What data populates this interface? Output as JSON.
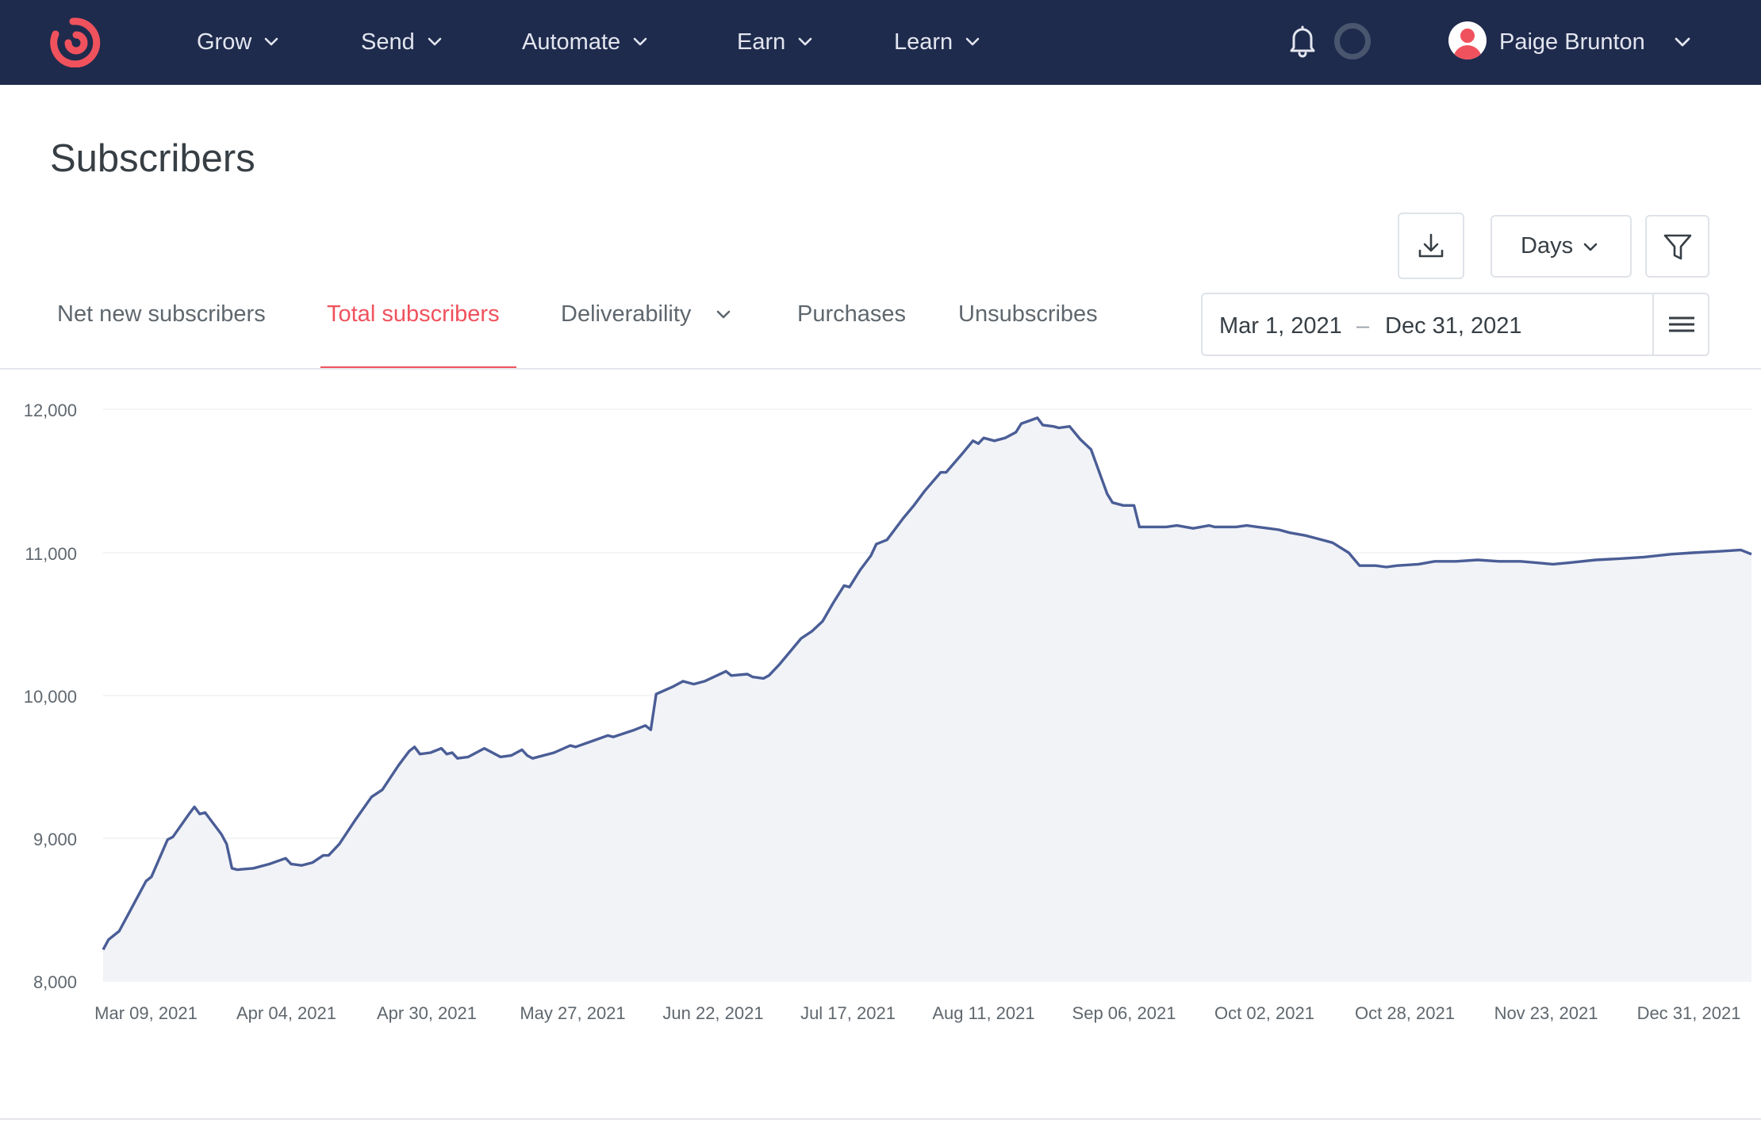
{
  "nav": {
    "items": [
      {
        "label": "Grow"
      },
      {
        "label": "Send"
      },
      {
        "label": "Automate"
      },
      {
        "label": "Earn"
      },
      {
        "label": "Learn"
      }
    ],
    "user_name": "Paige Brunton",
    "icons": {
      "logo": "convertkit-logo",
      "notifications": "bell-icon",
      "status": "loading-ring-icon",
      "avatar": "user-avatar"
    }
  },
  "page": {
    "title": "Subscribers"
  },
  "toolbar": {
    "interval": "Days",
    "download_icon": "download-icon",
    "filter_icon": "filter-icon"
  },
  "tabs": [
    {
      "label": "Net new subscribers",
      "active": false
    },
    {
      "label": "Total subscribers",
      "active": true
    },
    {
      "label": "Deliverability",
      "active": false
    },
    {
      "label": "Purchases",
      "active": false
    },
    {
      "label": "Unsubscribes",
      "active": false
    }
  ],
  "date_range": {
    "start": "Mar 1, 2021",
    "separator": "–",
    "end": "Dec 31, 2021"
  },
  "colors": {
    "nav_bg": "#1f2b4d",
    "accent": "#f0525d",
    "line": "#4a5d96",
    "area": "#f1f3f7"
  },
  "chart_data": {
    "type": "area",
    "title": "",
    "xlabel": "",
    "ylabel": "",
    "ylim": [
      8000,
      12000
    ],
    "yticks": [
      "12,000",
      "11,000",
      "10,000",
      "9,000",
      "8,000"
    ],
    "x_tick_labels": [
      "Mar 09, 2021",
      "Apr 04, 2021",
      "Apr 30, 2021",
      "May 27, 2021",
      "Jun 22, 2021",
      "Jul 17, 2021",
      "Aug 11, 2021",
      "Sep 06, 2021",
      "Oct 02, 2021",
      "Oct 28, 2021",
      "Nov 23, 2021",
      "Dec 31, 2021"
    ],
    "grid": true,
    "series": [
      {
        "points": [
          [
            "2021-03-01",
            8220
          ],
          [
            "2021-03-02",
            8290
          ],
          [
            "2021-03-04",
            8350
          ],
          [
            "2021-03-07",
            8560
          ],
          [
            "2021-03-09",
            8700
          ],
          [
            "2021-03-10",
            8730
          ],
          [
            "2021-03-13",
            8990
          ],
          [
            "2021-03-14",
            9010
          ],
          [
            "2021-03-17",
            9170
          ],
          [
            "2021-03-18",
            9220
          ],
          [
            "2021-03-19",
            9170
          ],
          [
            "2021-03-20",
            9180
          ],
          [
            "2021-03-23",
            9030
          ],
          [
            "2021-03-24",
            8960
          ],
          [
            "2021-03-25",
            8790
          ],
          [
            "2021-03-26",
            8780
          ],
          [
            "2021-03-29",
            8790
          ],
          [
            "2021-04-01",
            8820
          ],
          [
            "2021-04-04",
            8860
          ],
          [
            "2021-04-05",
            8820
          ],
          [
            "2021-04-07",
            8810
          ],
          [
            "2021-04-09",
            8830
          ],
          [
            "2021-04-11",
            8880
          ],
          [
            "2021-04-12",
            8880
          ],
          [
            "2021-04-14",
            8960
          ],
          [
            "2021-04-17",
            9130
          ],
          [
            "2021-04-20",
            9290
          ],
          [
            "2021-04-22",
            9340
          ],
          [
            "2021-04-25",
            9510
          ],
          [
            "2021-04-27",
            9610
          ],
          [
            "2021-04-28",
            9640
          ],
          [
            "2021-04-29",
            9590
          ],
          [
            "2021-05-01",
            9600
          ],
          [
            "2021-05-03",
            9630
          ],
          [
            "2021-05-04",
            9590
          ],
          [
            "2021-05-05",
            9600
          ],
          [
            "2021-05-06",
            9560
          ],
          [
            "2021-05-08",
            9570
          ],
          [
            "2021-05-11",
            9630
          ],
          [
            "2021-05-14",
            9570
          ],
          [
            "2021-05-16",
            9580
          ],
          [
            "2021-05-18",
            9620
          ],
          [
            "2021-05-19",
            9580
          ],
          [
            "2021-05-20",
            9560
          ],
          [
            "2021-05-24",
            9600
          ],
          [
            "2021-05-27",
            9650
          ],
          [
            "2021-05-28",
            9640
          ],
          [
            "2021-05-31",
            9680
          ],
          [
            "2021-06-03",
            9720
          ],
          [
            "2021-06-04",
            9710
          ],
          [
            "2021-06-08",
            9760
          ],
          [
            "2021-06-10",
            9790
          ],
          [
            "2021-06-11",
            9760
          ],
          [
            "2021-06-12",
            10010
          ],
          [
            "2021-06-15",
            10060
          ],
          [
            "2021-06-17",
            10100
          ],
          [
            "2021-06-19",
            10080
          ],
          [
            "2021-06-21",
            10100
          ],
          [
            "2021-06-25",
            10170
          ],
          [
            "2021-06-26",
            10140
          ],
          [
            "2021-06-29",
            10150
          ],
          [
            "2021-06-30",
            10130
          ],
          [
            "2021-07-02",
            10120
          ],
          [
            "2021-07-03",
            10140
          ],
          [
            "2021-07-05",
            10220
          ],
          [
            "2021-07-09",
            10400
          ],
          [
            "2021-07-11",
            10450
          ],
          [
            "2021-07-13",
            10520
          ],
          [
            "2021-07-15",
            10650
          ],
          [
            "2021-07-17",
            10770
          ],
          [
            "2021-07-18",
            10760
          ],
          [
            "2021-07-20",
            10880
          ],
          [
            "2021-07-22",
            10980
          ],
          [
            "2021-07-23",
            11060
          ],
          [
            "2021-07-25",
            11090
          ],
          [
            "2021-07-28",
            11240
          ],
          [
            "2021-07-30",
            11330
          ],
          [
            "2021-08-01",
            11430
          ],
          [
            "2021-08-04",
            11560
          ],
          [
            "2021-08-05",
            11560
          ],
          [
            "2021-08-08",
            11690
          ],
          [
            "2021-08-10",
            11780
          ],
          [
            "2021-08-11",
            11760
          ],
          [
            "2021-08-12",
            11800
          ],
          [
            "2021-08-14",
            11780
          ],
          [
            "2021-08-16",
            11800
          ],
          [
            "2021-08-18",
            11840
          ],
          [
            "2021-08-19",
            11900
          ],
          [
            "2021-08-22",
            11940
          ],
          [
            "2021-08-23",
            11890
          ],
          [
            "2021-08-25",
            11880
          ],
          [
            "2021-08-26",
            11870
          ],
          [
            "2021-08-28",
            11880
          ],
          [
            "2021-08-30",
            11790
          ],
          [
            "2021-09-01",
            11720
          ],
          [
            "2021-09-04",
            11410
          ],
          [
            "2021-09-05",
            11350
          ],
          [
            "2021-09-07",
            11330
          ],
          [
            "2021-09-09",
            11330
          ],
          [
            "2021-09-10",
            11180
          ],
          [
            "2021-09-15",
            11180
          ],
          [
            "2021-09-17",
            11190
          ],
          [
            "2021-09-20",
            11170
          ],
          [
            "2021-09-23",
            11190
          ],
          [
            "2021-09-24",
            11180
          ],
          [
            "2021-09-28",
            11180
          ],
          [
            "2021-09-30",
            11190
          ],
          [
            "2021-10-02",
            11180
          ],
          [
            "2021-10-04",
            11170
          ],
          [
            "2021-10-06",
            11160
          ],
          [
            "2021-10-08",
            11140
          ],
          [
            "2021-10-11",
            11120
          ],
          [
            "2021-10-13",
            11100
          ],
          [
            "2021-10-16",
            11070
          ],
          [
            "2021-10-19",
            11000
          ],
          [
            "2021-10-21",
            10910
          ],
          [
            "2021-10-24",
            10910
          ],
          [
            "2021-10-26",
            10900
          ],
          [
            "2021-10-28",
            10910
          ],
          [
            "2021-11-01",
            10920
          ],
          [
            "2021-11-04",
            10940
          ],
          [
            "2021-11-08",
            10940
          ],
          [
            "2021-11-12",
            10950
          ],
          [
            "2021-11-16",
            10940
          ],
          [
            "2021-11-20",
            10940
          ],
          [
            "2021-11-23",
            10930
          ],
          [
            "2021-11-26",
            10920
          ],
          [
            "2021-11-29",
            10930
          ],
          [
            "2021-12-04",
            10950
          ],
          [
            "2021-12-09",
            10960
          ],
          [
            "2021-12-13",
            10970
          ],
          [
            "2021-12-18",
            10990
          ],
          [
            "2021-12-22",
            11000
          ],
          [
            "2021-12-27",
            11010
          ],
          [
            "2021-12-31",
            11020
          ],
          [
            "2022-01-02",
            10990
          ]
        ]
      }
    ]
  }
}
